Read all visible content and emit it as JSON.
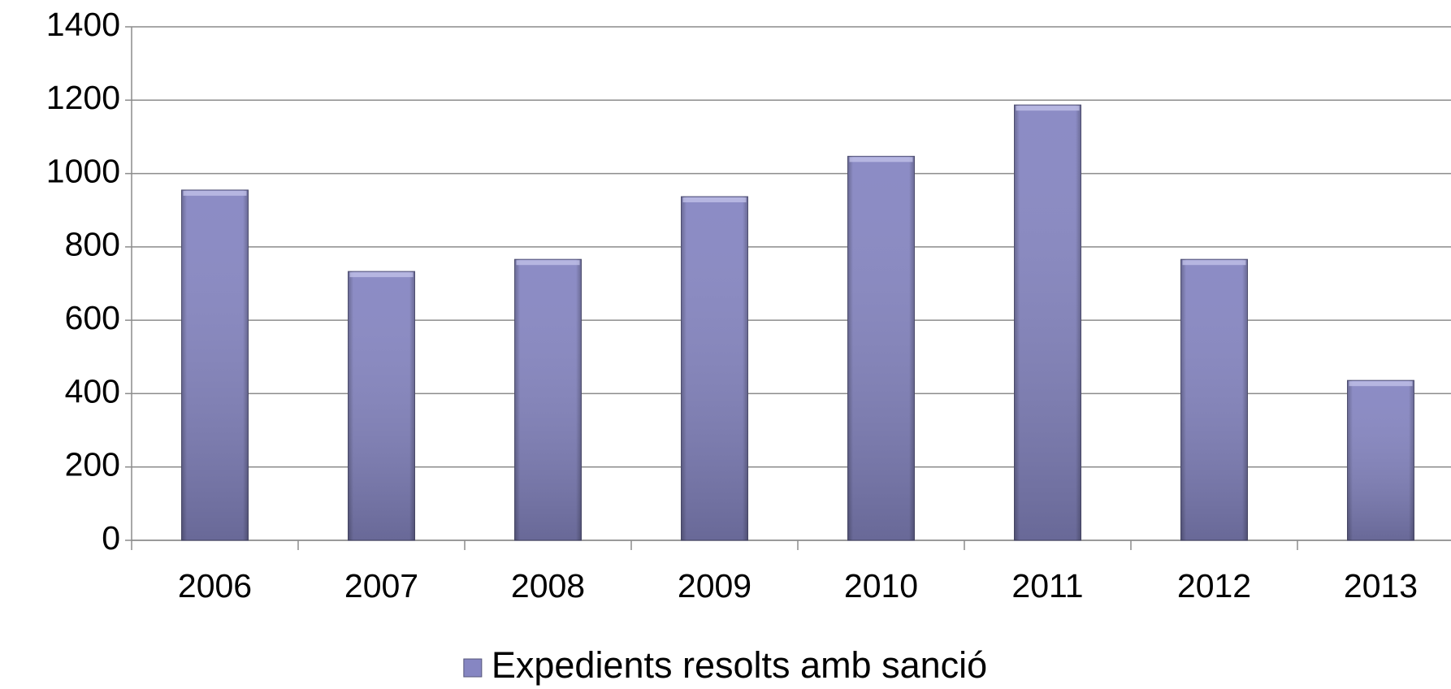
{
  "chart_data": {
    "type": "bar",
    "categories": [
      "2006",
      "2007",
      "2008",
      "2009",
      "2010",
      "2011",
      "2012",
      "2013"
    ],
    "series": [
      {
        "name": "Expedients resolts amb sanció",
        "color": "#8686c2",
        "values": [
          955,
          733,
          766,
          937,
          1047,
          1187,
          766,
          436
        ]
      }
    ],
    "ylim": [
      0,
      1400
    ],
    "yticks": [
      0,
      200,
      400,
      600,
      800,
      1000,
      1200,
      1400
    ],
    "grid": true,
    "legend": "bottom"
  }
}
